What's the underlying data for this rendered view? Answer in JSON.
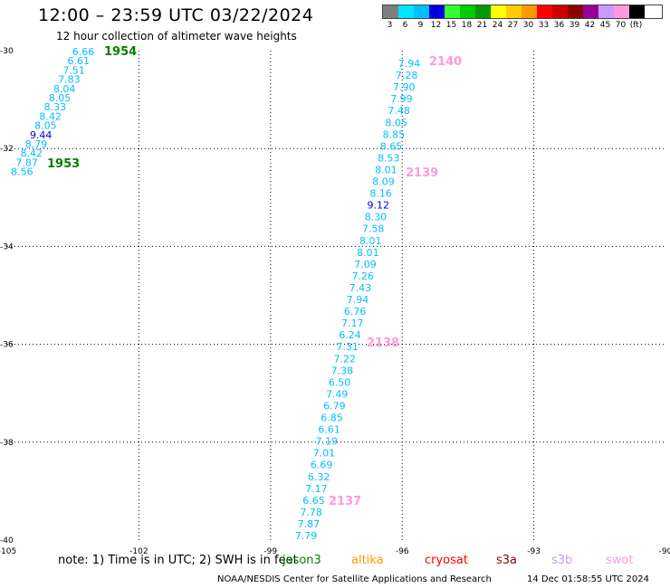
{
  "header": {
    "title": "12:00 – 23:59 UTC 03/22/2024",
    "subtitle": "12 hour collection of altimeter wave heights"
  },
  "legend": {
    "unit": "(ft)",
    "bins": [
      {
        "label": "3",
        "color": "#7f7f7f"
      },
      {
        "label": "6",
        "color": "#00e5ff"
      },
      {
        "label": "9",
        "color": "#00bfff"
      },
      {
        "label": "12",
        "color": "#0000e0"
      },
      {
        "label": "15",
        "color": "#33ff33"
      },
      {
        "label": "18",
        "color": "#00cc00"
      },
      {
        "label": "21",
        "color": "#009900"
      },
      {
        "label": "24",
        "color": "#ffff00"
      },
      {
        "label": "27",
        "color": "#ffcc00"
      },
      {
        "label": "30",
        "color": "#ff9900"
      },
      {
        "label": "33",
        "color": "#ff0000"
      },
      {
        "label": "36",
        "color": "#cc0000"
      },
      {
        "label": "39",
        "color": "#8b0000"
      },
      {
        "label": "42",
        "color": "#990099"
      },
      {
        "label": "45",
        "color": "#cc99ff"
      },
      {
        "label": "70",
        "color": "#ff99dd"
      },
      {
        "label": "",
        "color": "#000000"
      }
    ]
  },
  "map": {
    "lon_range": [
      -105,
      -90
    ],
    "lat_range": [
      -40,
      -30
    ],
    "lon_ticks": [
      "-105",
      "-102",
      "-99",
      "-96",
      "-93",
      "-90"
    ],
    "lat_ticks": [
      "-30",
      "-32",
      "-34",
      "-36",
      "-38",
      "-40"
    ],
    "grid": "dotted"
  },
  "tracks": [
    {
      "pass": [
        {
          "label": "1954",
          "color": "#008000"
        },
        {
          "label": "1953",
          "color": "#008000"
        }
      ],
      "heights": [
        {
          "v": "6.66",
          "color": "#00bfff"
        },
        {
          "v": "6.61",
          "color": "#00bfff"
        },
        {
          "v": "7.51",
          "color": "#00bfff"
        },
        {
          "v": "7.83",
          "color": "#00bfff"
        },
        {
          "v": "8.04",
          "color": "#00bfff"
        },
        {
          "v": "8.05",
          "color": "#00bfff"
        },
        {
          "v": "8.33",
          "color": "#00bfff"
        },
        {
          "v": "8.42",
          "color": "#00bfff"
        },
        {
          "v": "8.05",
          "color": "#00bfff"
        },
        {
          "v": "9.44",
          "color": "#0000e0"
        },
        {
          "v": "8.79",
          "color": "#00bfff"
        },
        {
          "v": "8.42",
          "color": "#00bfff"
        },
        {
          "v": "7.87",
          "color": "#00bfff"
        },
        {
          "v": "8.56",
          "color": "#00bfff"
        }
      ]
    },
    {
      "pass": [
        {
          "label": "2140",
          "color": "#ff99dd"
        },
        {
          "label": "2139",
          "color": "#ff99dd"
        },
        {
          "label": "2138",
          "color": "#ff99dd"
        },
        {
          "label": "2137",
          "color": "#ff99dd"
        }
      ],
      "heights": [
        {
          "v": "7.94",
          "color": "#00bfff"
        },
        {
          "v": "7.28",
          "color": "#00bfff"
        },
        {
          "v": "7.90",
          "color": "#00bfff"
        },
        {
          "v": "7.99",
          "color": "#00bfff"
        },
        {
          "v": "7.48",
          "color": "#00bfff"
        },
        {
          "v": "8.05",
          "color": "#00bfff"
        },
        {
          "v": "8.85",
          "color": "#00bfff"
        },
        {
          "v": "8.65",
          "color": "#00bfff"
        },
        {
          "v": "8.53",
          "color": "#00bfff"
        },
        {
          "v": "8.01",
          "color": "#00bfff"
        },
        {
          "v": "8.09",
          "color": "#00bfff"
        },
        {
          "v": "8.16",
          "color": "#00bfff"
        },
        {
          "v": "9.12",
          "color": "#0000e0"
        },
        {
          "v": "8.30",
          "color": "#00bfff"
        },
        {
          "v": "7.58",
          "color": "#00bfff"
        },
        {
          "v": "8.01",
          "color": "#00bfff"
        },
        {
          "v": "8.01",
          "color": "#00bfff"
        },
        {
          "v": "7.09",
          "color": "#00bfff"
        },
        {
          "v": "7.26",
          "color": "#00bfff"
        },
        {
          "v": "7.43",
          "color": "#00bfff"
        },
        {
          "v": "7.94",
          "color": "#00bfff"
        },
        {
          "v": "6.76",
          "color": "#00bfff"
        },
        {
          "v": "7.17",
          "color": "#00bfff"
        },
        {
          "v": "6.24",
          "color": "#00bfff"
        },
        {
          "v": "7.31",
          "color": "#00bfff"
        },
        {
          "v": "7.22",
          "color": "#00bfff"
        },
        {
          "v": "7.38",
          "color": "#00bfff"
        },
        {
          "v": "6.50",
          "color": "#00bfff"
        },
        {
          "v": "7.49",
          "color": "#00bfff"
        },
        {
          "v": "6.79",
          "color": "#00bfff"
        },
        {
          "v": "6.85",
          "color": "#00bfff"
        },
        {
          "v": "6.61",
          "color": "#00bfff"
        },
        {
          "v": "7.19",
          "color": "#00bfff"
        },
        {
          "v": "7.01",
          "color": "#00bfff"
        },
        {
          "v": "6.69",
          "color": "#00bfff"
        },
        {
          "v": "6.32",
          "color": "#00bfff"
        },
        {
          "v": "7.17",
          "color": "#00bfff"
        },
        {
          "v": "6.65",
          "color": "#00bfff"
        },
        {
          "v": "7.78",
          "color": "#00bfff"
        },
        {
          "v": "7.87",
          "color": "#00bfff"
        },
        {
          "v": "7.79",
          "color": "#00bfff"
        }
      ]
    }
  ],
  "notes": {
    "note_text": "note:  1) Time is in UTC; 2) SWH is in feet",
    "satellites": [
      {
        "name": "jason3",
        "color": "#008000"
      },
      {
        "name": "altika",
        "color": "#ff9900"
      },
      {
        "name": "cryosat",
        "color": "#ff0000"
      },
      {
        "name": "s3a",
        "color": "#8b0000"
      },
      {
        "name": "s3b",
        "color": "#cc99ff"
      },
      {
        "name": "swot",
        "color": "#ff99dd"
      }
    ]
  },
  "footer": {
    "credit": "NOAA/NESDIS Center for Satellite Applications and Research",
    "timestamp": "14 Dec 01:58:55 UTC 2024"
  }
}
